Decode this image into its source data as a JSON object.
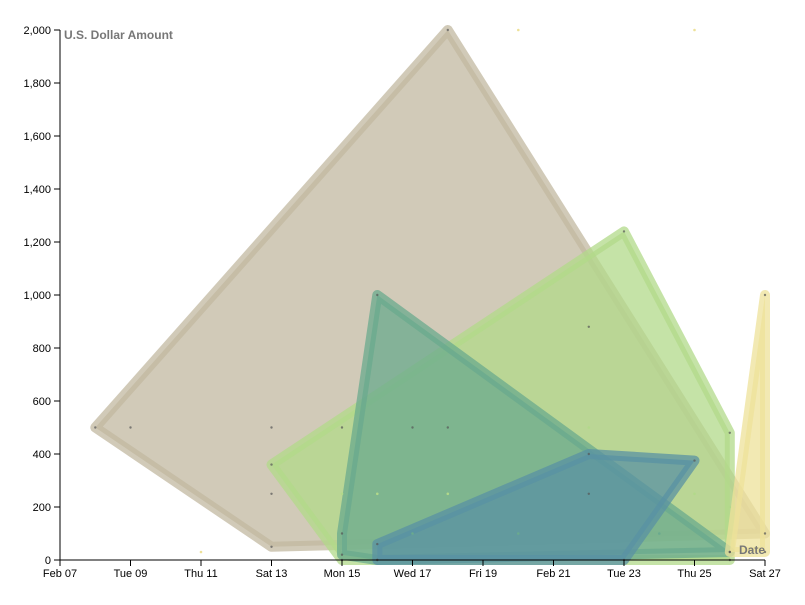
{
  "chart_data": {
    "type": "scatter",
    "title": "",
    "xlabel": "Date",
    "ylabel": "U.S. Dollar Amount",
    "xlim": [
      "2021-02-07",
      "2021-02-27"
    ],
    "ylim": [
      0,
      2000
    ],
    "grid": false,
    "x_ticks": [
      "Feb 07",
      "Tue 09",
      "Thu 11",
      "Sat 13",
      "Mon 15",
      "Wed 17",
      "Fri 19",
      "Feb 21",
      "Tue 23",
      "Thu 25",
      "Sat 27"
    ],
    "y_ticks": [
      "0",
      "200",
      "400",
      "600",
      "800",
      "1,000",
      "1,200",
      "1,400",
      "1,600",
      "1,800",
      "2,000"
    ],
    "groups": [
      {
        "color": "#c2b8a0",
        "points": [
          {
            "x": "2021-02-08",
            "y": 500
          },
          {
            "x": "2021-02-09",
            "y": 500
          },
          {
            "x": "2021-02-13",
            "y": 500
          },
          {
            "x": "2021-02-13",
            "y": 250
          },
          {
            "x": "2021-02-13",
            "y": 50
          },
          {
            "x": "2021-02-18",
            "y": 2000
          },
          {
            "x": "2021-02-27",
            "y": 100
          }
        ]
      },
      {
        "color": "#b2d98a",
        "points": [
          {
            "x": "2021-02-13",
            "y": 360
          },
          {
            "x": "2021-02-15",
            "y": 500
          },
          {
            "x": "2021-02-17",
            "y": 500
          },
          {
            "x": "2021-02-18",
            "y": 500
          },
          {
            "x": "2021-02-22",
            "y": 880
          },
          {
            "x": "2021-02-23",
            "y": 1240
          },
          {
            "x": "2021-02-26",
            "y": 480
          },
          {
            "x": "2021-02-26",
            "y": 0
          },
          {
            "x": "2021-02-15",
            "y": 0
          }
        ]
      },
      {
        "color": "#6aaa8e",
        "points": [
          {
            "x": "2021-02-16",
            "y": 1000
          },
          {
            "x": "2021-02-16",
            "y": 0
          },
          {
            "x": "2021-02-15",
            "y": 100
          },
          {
            "x": "2021-02-15",
            "y": 20
          },
          {
            "x": "2021-02-26",
            "y": 30
          },
          {
            "x": "2021-02-22",
            "y": 250
          }
        ]
      },
      {
        "color": "#5a92a3",
        "points": [
          {
            "x": "2021-02-16",
            "y": 60
          },
          {
            "x": "2021-02-22",
            "y": 400
          },
          {
            "x": "2021-02-25",
            "y": 375
          },
          {
            "x": "2021-02-23",
            "y": 0
          },
          {
            "x": "2021-02-16",
            "y": 0
          }
        ]
      },
      {
        "color": "#ede199",
        "points": [
          {
            "x": "2021-02-27",
            "y": 1000
          },
          {
            "x": "2021-02-27",
            "y": 30
          },
          {
            "x": "2021-02-26",
            "y": 30
          }
        ]
      }
    ],
    "scatter_points": [
      {
        "x": "2021-02-11",
        "y": 30,
        "color": "#ede199"
      },
      {
        "x": "2021-02-20",
        "y": 2000,
        "color": "#ede199"
      },
      {
        "x": "2021-02-25",
        "y": 2000,
        "color": "#ede199"
      },
      {
        "x": "2021-02-17",
        "y": 100,
        "color": "#6aaa8e"
      },
      {
        "x": "2021-02-18",
        "y": 250,
        "color": "#b2d98a"
      },
      {
        "x": "2021-02-20",
        "y": 100,
        "color": "#6aaa8e"
      },
      {
        "x": "2021-02-22",
        "y": 500,
        "color": "#b2d98a"
      },
      {
        "x": "2021-02-24",
        "y": 100,
        "color": "#6aaa8e"
      },
      {
        "x": "2021-02-25",
        "y": 250,
        "color": "#b2d98a"
      },
      {
        "x": "2021-02-26",
        "y": 200,
        "color": "#b2d98a"
      },
      {
        "x": "2021-02-15",
        "y": 250,
        "color": "#b2d98a"
      },
      {
        "x": "2021-02-16",
        "y": 250,
        "color": "#b2d98a"
      }
    ]
  }
}
